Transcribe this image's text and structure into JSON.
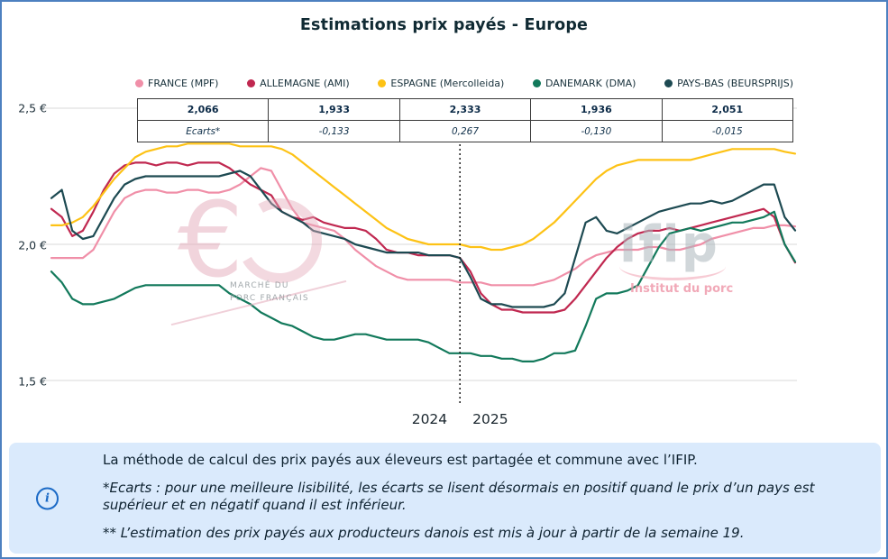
{
  "page": {
    "title": "Estimations prix payés - Europe",
    "border_color": "#4d80c0",
    "info_box_bg": "#daeafc"
  },
  "legend": [
    {
      "label": "FRANCE (MPF)",
      "color": "#f08fa8"
    },
    {
      "label": "ALLEMAGNE (AMI)",
      "color": "#c02850"
    },
    {
      "label": "ESPAGNE (Mercolleida)",
      "color": "#fdc215"
    },
    {
      "label": "DANEMARK (DMA)",
      "color": "#12795b"
    },
    {
      "label": "PAYS-BAS (BEURSPRIJS)",
      "color": "#1d4a52"
    }
  ],
  "table": {
    "prices": [
      "2,066",
      "1,933",
      "2,333",
      "1,936",
      "2,051"
    ],
    "ecarts_label": "Ecarts*",
    "ecarts": [
      "-0,133",
      "0,267",
      "-0,130",
      "-0,015"
    ]
  },
  "axis": {
    "y_ticks": [
      "2,5 €",
      "2,0 €",
      "1,5 €"
    ],
    "year_left": "2024",
    "year_right": "2025"
  },
  "watermarks": {
    "mpf": {
      "symbol": "€",
      "line1": "MARCHÉ DU",
      "line2": "PORC FRANÇAIS"
    },
    "ifip": {
      "name": "ifip",
      "subtitle": "Institut du porc"
    }
  },
  "info_box": {
    "icon": "i",
    "p1": "La méthode de calcul des prix payés aux éleveurs est partagée et commune avec l’IFIP.",
    "p2": "*Ecarts : pour une meilleure lisibilité, les écarts se lisent désormais en positif quand le prix d’un pays est supérieur et en négatif quand il est inférieur.",
    "p3": "** L’estimation des prix payés aux producteurs danois est mis à jour à partir de la semaine 19."
  },
  "chart_data": {
    "type": "line",
    "title": "Estimations prix payés - Europe",
    "xlabel": "",
    "ylabel": "",
    "ylim": [
      1.4,
      2.55
    ],
    "y_gridlines": [
      2.5,
      2.0,
      1.5
    ],
    "grid": true,
    "legend_position": "top",
    "x_divider": {
      "index": 39,
      "left_label": "2024",
      "right_label": "2025"
    },
    "current_values": {
      "FRANCE": 2.066,
      "ALLEMAGNE": 1.933,
      "ESPAGNE": 2.333,
      "DANEMARK": 1.936,
      "PAYS_BAS": 2.051
    },
    "series": [
      {
        "name": "FRANCE (MPF)",
        "color": "#f08fa8",
        "values": [
          1.95,
          1.95,
          1.95,
          1.95,
          1.98,
          2.05,
          2.12,
          2.17,
          2.19,
          2.2,
          2.2,
          2.19,
          2.19,
          2.2,
          2.2,
          2.19,
          2.19,
          2.2,
          2.22,
          2.25,
          2.28,
          2.27,
          2.2,
          2.13,
          2.08,
          2.07,
          2.06,
          2.05,
          2.02,
          1.98,
          1.95,
          1.92,
          1.9,
          1.88,
          1.87,
          1.87,
          1.87,
          1.87,
          1.87,
          1.86,
          1.86,
          1.86,
          1.85,
          1.85,
          1.85,
          1.85,
          1.85,
          1.86,
          1.87,
          1.89,
          1.91,
          1.94,
          1.96,
          1.97,
          1.98,
          1.98,
          1.98,
          1.99,
          1.99,
          1.98,
          1.98,
          1.99,
          2.0,
          2.02,
          2.03,
          2.04,
          2.05,
          2.06,
          2.06,
          2.07,
          2.07,
          2.066
        ]
      },
      {
        "name": "ALLEMAGNE (AMI)",
        "color": "#c02850",
        "values": [
          2.13,
          2.1,
          2.03,
          2.05,
          2.12,
          2.2,
          2.26,
          2.29,
          2.3,
          2.3,
          2.29,
          2.3,
          2.3,
          2.29,
          2.3,
          2.3,
          2.3,
          2.28,
          2.25,
          2.22,
          2.2,
          2.18,
          2.12,
          2.1,
          2.09,
          2.1,
          2.08,
          2.07,
          2.06,
          2.06,
          2.05,
          2.02,
          1.98,
          1.97,
          1.97,
          1.96,
          1.96,
          1.96,
          1.96,
          1.95,
          1.9,
          1.82,
          1.78,
          1.76,
          1.76,
          1.75,
          1.75,
          1.75,
          1.75,
          1.76,
          1.8,
          1.85,
          1.9,
          1.95,
          1.99,
          2.02,
          2.04,
          2.05,
          2.05,
          2.06,
          2.05,
          2.06,
          2.07,
          2.08,
          2.09,
          2.1,
          2.11,
          2.12,
          2.13,
          2.1,
          2.0,
          1.933
        ]
      },
      {
        "name": "ESPAGNE (Mercolleida)",
        "color": "#fdc215",
        "values": [
          2.07,
          2.07,
          2.08,
          2.1,
          2.14,
          2.19,
          2.24,
          2.28,
          2.32,
          2.34,
          2.35,
          2.36,
          2.36,
          2.37,
          2.37,
          2.37,
          2.37,
          2.37,
          2.36,
          2.36,
          2.36,
          2.36,
          2.35,
          2.33,
          2.3,
          2.27,
          2.24,
          2.21,
          2.18,
          2.15,
          2.12,
          2.09,
          2.06,
          2.04,
          2.02,
          2.01,
          2.0,
          2.0,
          2.0,
          2.0,
          1.99,
          1.99,
          1.98,
          1.98,
          1.99,
          2.0,
          2.02,
          2.05,
          2.08,
          2.12,
          2.16,
          2.2,
          2.24,
          2.27,
          2.29,
          2.3,
          2.31,
          2.31,
          2.31,
          2.31,
          2.31,
          2.31,
          2.32,
          2.33,
          2.34,
          2.35,
          2.35,
          2.35,
          2.35,
          2.35,
          2.34,
          2.333
        ]
      },
      {
        "name": "DANEMARK (DMA)",
        "color": "#12795b",
        "values": [
          1.9,
          1.86,
          1.8,
          1.78,
          1.78,
          1.79,
          1.8,
          1.82,
          1.84,
          1.85,
          1.85,
          1.85,
          1.85,
          1.85,
          1.85,
          1.85,
          1.85,
          1.82,
          1.8,
          1.78,
          1.75,
          1.73,
          1.71,
          1.7,
          1.68,
          1.66,
          1.65,
          1.65,
          1.66,
          1.67,
          1.67,
          1.66,
          1.65,
          1.65,
          1.65,
          1.65,
          1.64,
          1.62,
          1.6,
          1.6,
          1.6,
          1.59,
          1.59,
          1.58,
          1.58,
          1.57,
          1.57,
          1.58,
          1.6,
          1.6,
          1.61,
          1.7,
          1.8,
          1.82,
          1.82,
          1.83,
          1.85,
          1.92,
          1.99,
          2.04,
          2.05,
          2.06,
          2.05,
          2.06,
          2.07,
          2.08,
          2.08,
          2.09,
          2.1,
          2.12,
          2.0,
          1.936
        ]
      },
      {
        "name": "PAYS-BAS (BEURSPRIJS)",
        "color": "#1d4a52",
        "values": [
          2.17,
          2.2,
          2.05,
          2.02,
          2.03,
          2.1,
          2.17,
          2.22,
          2.24,
          2.25,
          2.25,
          2.25,
          2.25,
          2.25,
          2.25,
          2.25,
          2.25,
          2.26,
          2.27,
          2.25,
          2.2,
          2.15,
          2.12,
          2.1,
          2.08,
          2.05,
          2.04,
          2.03,
          2.02,
          2.0,
          1.99,
          1.98,
          1.97,
          1.97,
          1.97,
          1.97,
          1.96,
          1.96,
          1.96,
          1.95,
          1.88,
          1.8,
          1.78,
          1.78,
          1.77,
          1.77,
          1.77,
          1.77,
          1.78,
          1.82,
          1.95,
          2.08,
          2.1,
          2.05,
          2.04,
          2.06,
          2.08,
          2.1,
          2.12,
          2.13,
          2.14,
          2.15,
          2.15,
          2.16,
          2.15,
          2.16,
          2.18,
          2.2,
          2.22,
          2.22,
          2.1,
          2.051
        ]
      }
    ]
  }
}
